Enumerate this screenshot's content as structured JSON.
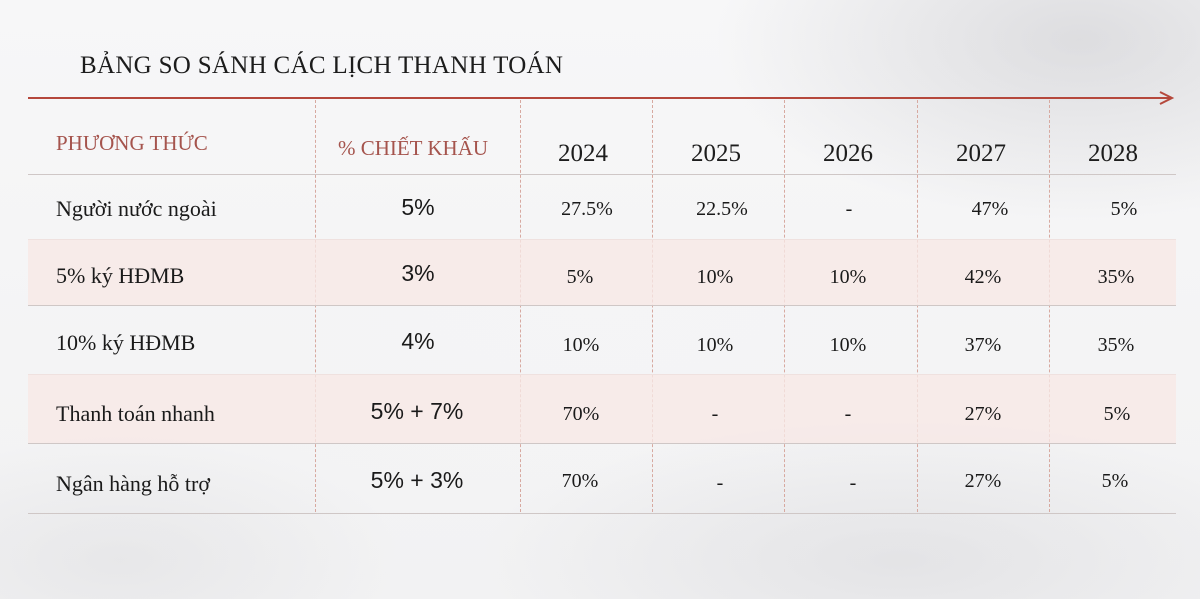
{
  "title": "BẢNG SO SÁNH CÁC LỊCH THANH TOÁN",
  "colors": {
    "accent": "#b5483c",
    "header_label": "#a5544d",
    "shade_row": "#f7e8e6",
    "divider": "#d7a9a0"
  },
  "table": {
    "headers": {
      "method": "PHƯƠNG THỨC",
      "discount": "% CHIẾT KHẤU",
      "years": [
        "2024",
        "2025",
        "2026",
        "2027",
        "2028"
      ]
    },
    "rows": [
      {
        "method": "Người nước ngoài",
        "discount": "5%",
        "values": [
          "27.5%",
          "22.5%",
          "-",
          "47%",
          "5%"
        ]
      },
      {
        "method": "5% ký HĐMB",
        "discount": "3%",
        "values": [
          "5%",
          "10%",
          "10%",
          "42%",
          "35%"
        ]
      },
      {
        "method": "10% ký HĐMB",
        "discount": "4%",
        "values": [
          "10%",
          "10%",
          "10%",
          "37%",
          "35%"
        ]
      },
      {
        "method": "Thanh toán nhanh",
        "discount": "5% + 7%",
        "values": [
          "70%",
          "-",
          "-",
          "27%",
          "5%"
        ]
      },
      {
        "method": "Ngân hàng hỗ trợ",
        "discount": "5% + 3%",
        "values": [
          "70%",
          "-",
          "-",
          "27%",
          "5%"
        ]
      }
    ]
  }
}
